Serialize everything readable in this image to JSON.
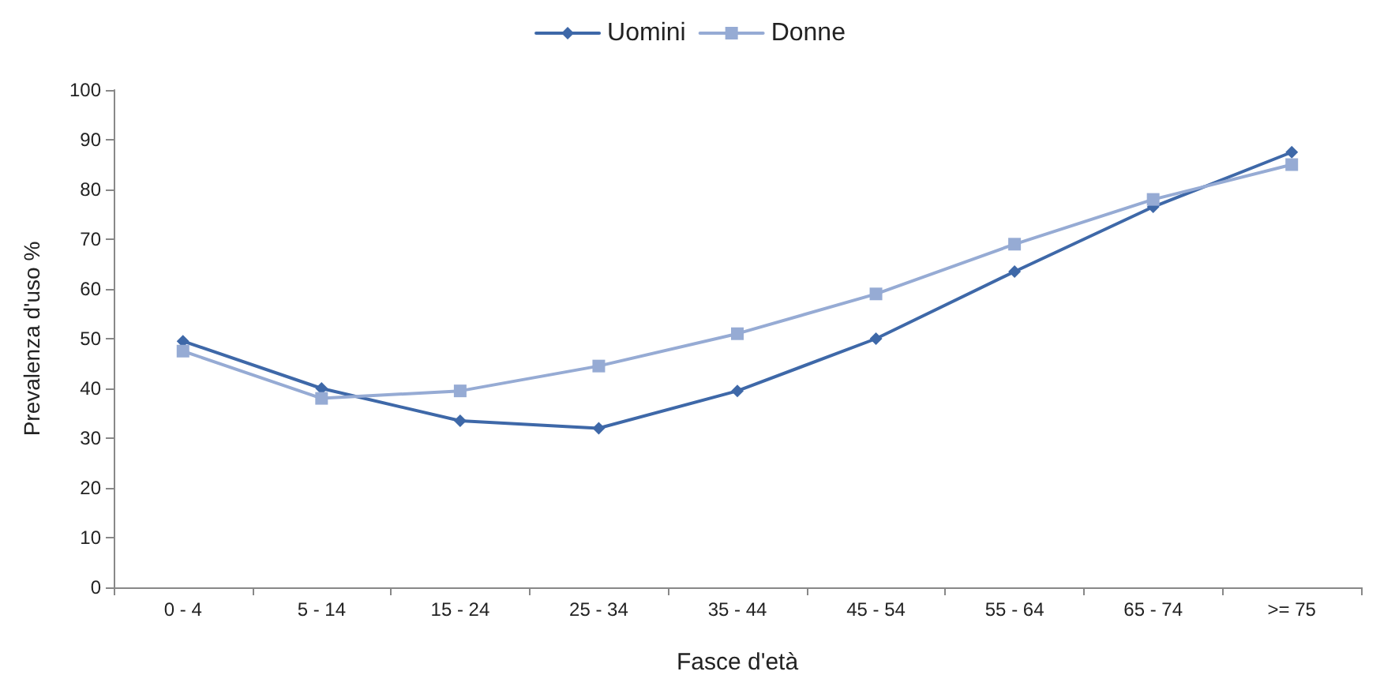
{
  "chart_data": {
    "type": "line",
    "xlabel": "Fasce d'età",
    "ylabel": "Prevalenza d'uso %",
    "categories": [
      "0 - 4",
      "5 - 14",
      "15 - 24",
      "25 - 34",
      "35 - 44",
      "45 - 54",
      "55 - 64",
      "65 - 74",
      ">= 75"
    ],
    "series": [
      {
        "name": "Uomini",
        "color": "#3e68a8",
        "marker": "diamond",
        "values": [
          49.5,
          40,
          33.5,
          32,
          39.5,
          50,
          63.5,
          76.5,
          87.5
        ]
      },
      {
        "name": "Donne",
        "color": "#96abd4",
        "marker": "square",
        "values": [
          47.5,
          38,
          39.5,
          44.5,
          51,
          59,
          69,
          78,
          85
        ]
      }
    ],
    "ylim": [
      0,
      100
    ],
    "yticks": [
      0,
      10,
      20,
      30,
      40,
      50,
      60,
      70,
      80,
      90,
      100
    ],
    "grid": false,
    "legend": "top",
    "line_style": "solid"
  }
}
